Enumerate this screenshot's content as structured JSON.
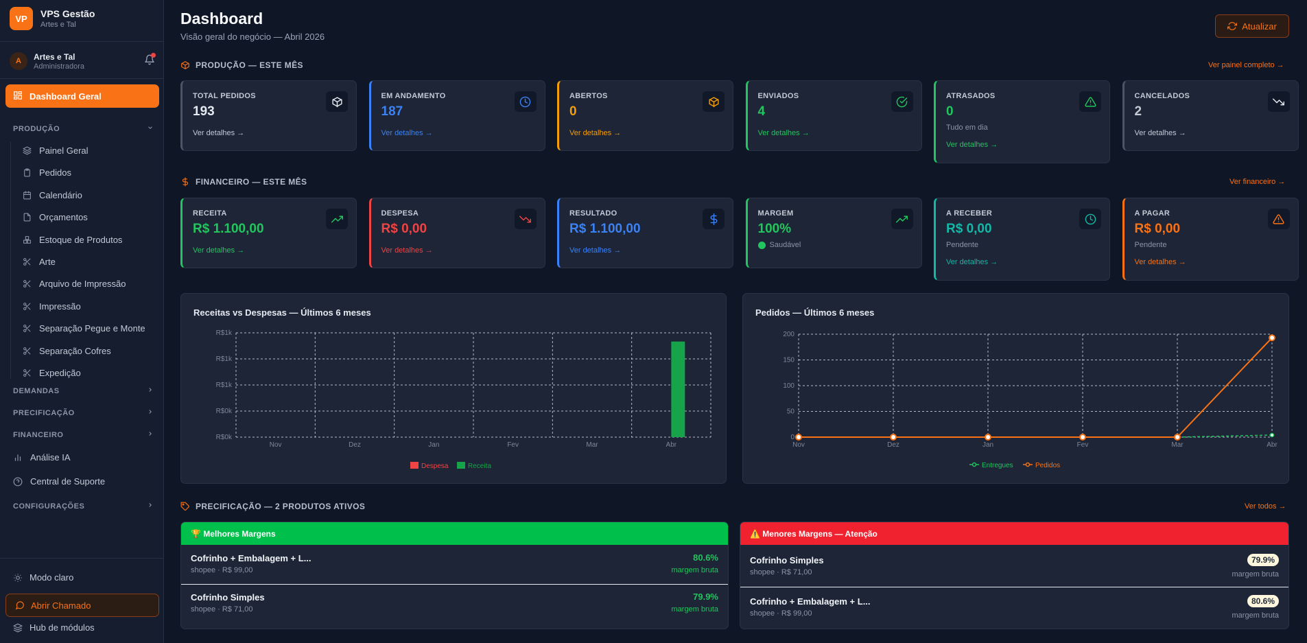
{
  "app": {
    "logo": "VP",
    "title": "VPS Gestão",
    "subtitle": "Artes e Tal"
  },
  "user": {
    "initial": "A",
    "name": "Artes e Tal",
    "role": "Administradora"
  },
  "sidebar": {
    "active": "Dashboard Geral",
    "sections": {
      "producao": "PRODUÇÃO",
      "demandas": "DEMANDAS",
      "precificacao": "PRECIFICAÇÃO",
      "financeiro": "FINANCEIRO",
      "configuracoes": "CONFIGURAÇÕES"
    },
    "producao_items": [
      "Painel Geral",
      "Pedidos",
      "Calendário",
      "Orçamentos",
      "Estoque de Produtos",
      "Arte",
      "Arquivo de Impressão",
      "Impressão",
      "Separação Pegue e Monte",
      "Separação Cofres",
      "Expedição"
    ],
    "analise": "Análise IA",
    "suporte": "Central de Suporte",
    "modo": "Modo claro",
    "chamado": "Abrir Chamado",
    "hub": "Hub de módulos"
  },
  "header": {
    "title": "Dashboard",
    "subtitle": "Visão geral do negócio — Abril 2026",
    "refresh": "Atualizar"
  },
  "producao": {
    "title": "PRODUÇÃO — ESTE MÊS",
    "link": "Ver painel completo →",
    "cards": [
      {
        "label": "TOTAL PEDIDOS",
        "value": "193",
        "link": "Ver detalhes →",
        "color": "#e5e9f0",
        "border": "#4b5568",
        "icon": "box-icon"
      },
      {
        "label": "EM ANDAMENTO",
        "value": "187",
        "link": "Ver detalhes →",
        "color": "#3b82f6",
        "border": "#3b82f6",
        "icon": "clock-icon"
      },
      {
        "label": "ABERTOS",
        "value": "0",
        "link": "Ver detalhes →",
        "color": "#f59e0b",
        "border": "#f59e0b",
        "icon": "box-icon"
      },
      {
        "label": "ENVIADOS",
        "value": "4",
        "link": "Ver detalhes →",
        "color": "#22c55e",
        "border": "#22c55e",
        "icon": "check-circle-icon"
      },
      {
        "label": "ATRASADOS",
        "value": "0",
        "note": "Tudo em dia",
        "link": "Ver detalhes →",
        "color": "#22c55e",
        "border": "#22c55e",
        "icon": "alert-triangle-icon"
      },
      {
        "label": "CANCELADOS",
        "value": "2",
        "link": "Ver detalhes →",
        "color": "#c3cad6",
        "border": "#4b5568",
        "icon": "trending-down-icon"
      }
    ]
  },
  "financeiro": {
    "title": "FINANCEIRO — ESTE MÊS",
    "link": "Ver financeiro →",
    "cards": [
      {
        "label": "RECEITA",
        "value": "R$ 1.100,00",
        "link": "Ver detalhes →",
        "color": "#22c55e",
        "border": "#22c55e",
        "icon": "trending-up-icon"
      },
      {
        "label": "DESPESA",
        "value": "R$ 0,00",
        "link": "Ver detalhes →",
        "color": "#ef4444",
        "border": "#ef4444",
        "icon": "trending-down-icon"
      },
      {
        "label": "RESULTADO",
        "value": "R$ 1.100,00",
        "link": "Ver detalhes →",
        "color": "#3b82f6",
        "border": "#3b82f6",
        "icon": "dollar-icon"
      },
      {
        "label": "MARGEM",
        "value": "100%",
        "note": "Saudável",
        "color": "#22c55e",
        "border": "#22c55e",
        "icon": "trending-up-icon"
      },
      {
        "label": "A RECEBER",
        "value": "R$ 0,00",
        "note": "Pendente",
        "link": "Ver detalhes →",
        "color": "#14b8a6",
        "border": "#14b8a6",
        "icon": "clock-icon"
      },
      {
        "label": "A PAGAR",
        "value": "R$ 0,00",
        "note": "Pendente",
        "link": "Ver detalhes →",
        "color": "#f97316",
        "border": "#f97316",
        "icon": "alert-triangle-icon"
      }
    ]
  },
  "chart_data": [
    {
      "type": "bar",
      "title": "Receitas vs Despesas — Últimos 6 meses",
      "categories": [
        "Nov",
        "Dez",
        "Jan",
        "Fev",
        "Mar",
        "Abr"
      ],
      "y_tick_labels": [
        "R$0k",
        "R$0k",
        "R$1k",
        "R$1k",
        "R$1k"
      ],
      "ylim": [
        0,
        1200
      ],
      "grid": true,
      "legend": "bottom",
      "series": [
        {
          "name": "Despesa",
          "color": "#ef4444",
          "values": [
            0,
            0,
            0,
            0,
            0,
            0
          ]
        },
        {
          "name": "Receita",
          "color": "#16a34a",
          "values": [
            0,
            0,
            0,
            0,
            0,
            1100
          ]
        }
      ]
    },
    {
      "type": "line",
      "title": "Pedidos — Últimos 6 meses",
      "categories": [
        "Nov",
        "Dez",
        "Jan",
        "Fev",
        "Mar",
        "Abr"
      ],
      "y_ticks": [
        0,
        50,
        100,
        150,
        200
      ],
      "ylim": [
        0,
        200
      ],
      "grid": true,
      "legend": "bottom",
      "series": [
        {
          "name": "Entregues",
          "color": "#22c55e",
          "values": [
            0,
            0,
            0,
            0,
            0,
            4
          ]
        },
        {
          "name": "Pedidos",
          "color": "#f97316",
          "values": [
            0,
            0,
            0,
            0,
            0,
            193
          ]
        }
      ]
    }
  ],
  "precificacao": {
    "title": "PRECIFICAÇÃO — 2 PRODUTOS ATIVOS",
    "link": "Ver todos →",
    "best": {
      "title": "🏆 Melhores Margens",
      "color": "#00c04b",
      "rows": [
        {
          "name": "Cofrinho + Embalagem + L...",
          "meta": "shopee · R$ 99,00",
          "value": "80.6%",
          "note": "margem bruta"
        },
        {
          "name": "Cofrinho Simples",
          "meta": "shopee · R$ 71,00",
          "value": "79.9%",
          "note": "margem bruta"
        }
      ]
    },
    "worst": {
      "title": "⚠️ Menores Margens — Atenção",
      "color": "#f0222f",
      "rows": [
        {
          "name": "Cofrinho Simples",
          "meta": "shopee · R$ 71,00",
          "value": "79.9%",
          "note": "margem bruta"
        },
        {
          "name": "Cofrinho + Embalagem + L...",
          "meta": "shopee · R$ 99,00",
          "value": "80.6%",
          "note": "margem bruta"
        }
      ]
    }
  }
}
